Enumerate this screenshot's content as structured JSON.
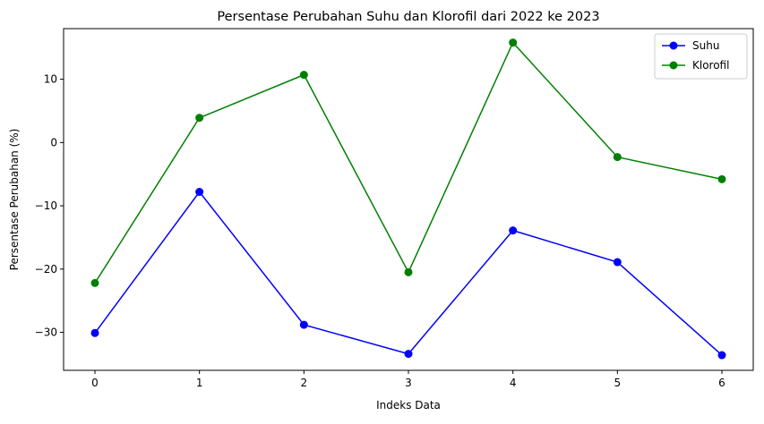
{
  "chart_data": {
    "type": "line",
    "title": "Persentase Perubahan Suhu dan Klorofil dari 2022 ke 2023",
    "xlabel": "Indeks Data",
    "ylabel": "Persentase Perubahan (%)",
    "x": [
      0,
      1,
      2,
      3,
      4,
      5,
      6
    ],
    "xticks": [
      "0",
      "1",
      "2",
      "3",
      "4",
      "5",
      "6"
    ],
    "yticks": [
      10,
      0,
      -10,
      -20,
      -30
    ],
    "ytick_labels": [
      "10",
      "0",
      "−10",
      "−20",
      "−30"
    ],
    "xlim": [
      -0.3,
      6.3
    ],
    "ylim": [
      -36,
      18
    ],
    "grid": false,
    "legend": "top-right",
    "series": [
      {
        "name": "Suhu",
        "color": "#0000ff",
        "marker": "circle",
        "values": [
          -30.1,
          -7.8,
          -28.8,
          -33.4,
          -13.9,
          -18.9,
          -33.6
        ]
      },
      {
        "name": "Klorofil",
        "color": "#008000",
        "marker": "circle",
        "values": [
          -22.2,
          3.9,
          10.7,
          -20.5,
          15.8,
          -2.3,
          -5.8
        ]
      }
    ]
  }
}
